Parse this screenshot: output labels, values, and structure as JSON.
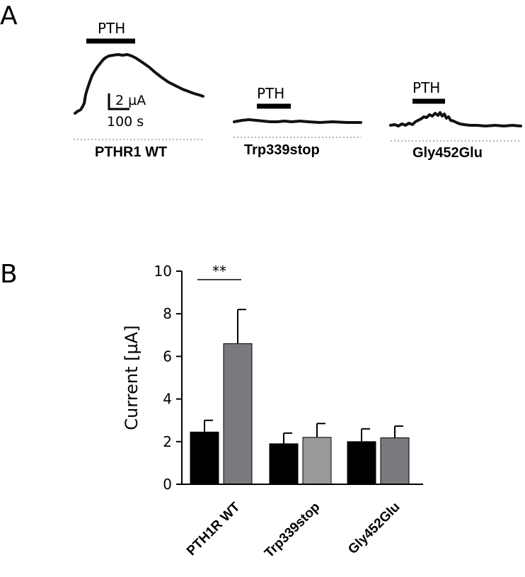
{
  "panel_a": {
    "letter": "A",
    "stimulus_label": "PTH",
    "scale_bar": {
      "current": "2 µA",
      "time": "100 s"
    },
    "traces": [
      {
        "condition": "PTHR1 WT"
      },
      {
        "condition": "Trp339stop"
      },
      {
        "condition": "Gly452Glu"
      }
    ]
  },
  "panel_b": {
    "letter": "B"
  },
  "chart_data": {
    "type": "bar",
    "categories": [
      "PTH1R WT",
      "Trp339stop",
      "Gly452Glu"
    ],
    "series": [
      {
        "values": [
          2.45,
          1.9,
          2.0
        ],
        "errors": [
          0.55,
          0.5,
          0.6
        ],
        "color": "#000000"
      },
      {
        "values": [
          6.6,
          2.2,
          2.18
        ],
        "errors": [
          1.6,
          0.65,
          0.55
        ],
        "colors": [
          "#7a7a7e",
          "#9a9a9a",
          "#7a7a7e"
        ]
      }
    ],
    "ylabel": "Current [µA]",
    "ylim": [
      0,
      10
    ],
    "yticks": [
      0,
      2,
      4,
      6,
      8,
      10
    ],
    "significance": {
      "category": "PTH1R WT",
      "label": "**"
    },
    "grid": false
  }
}
